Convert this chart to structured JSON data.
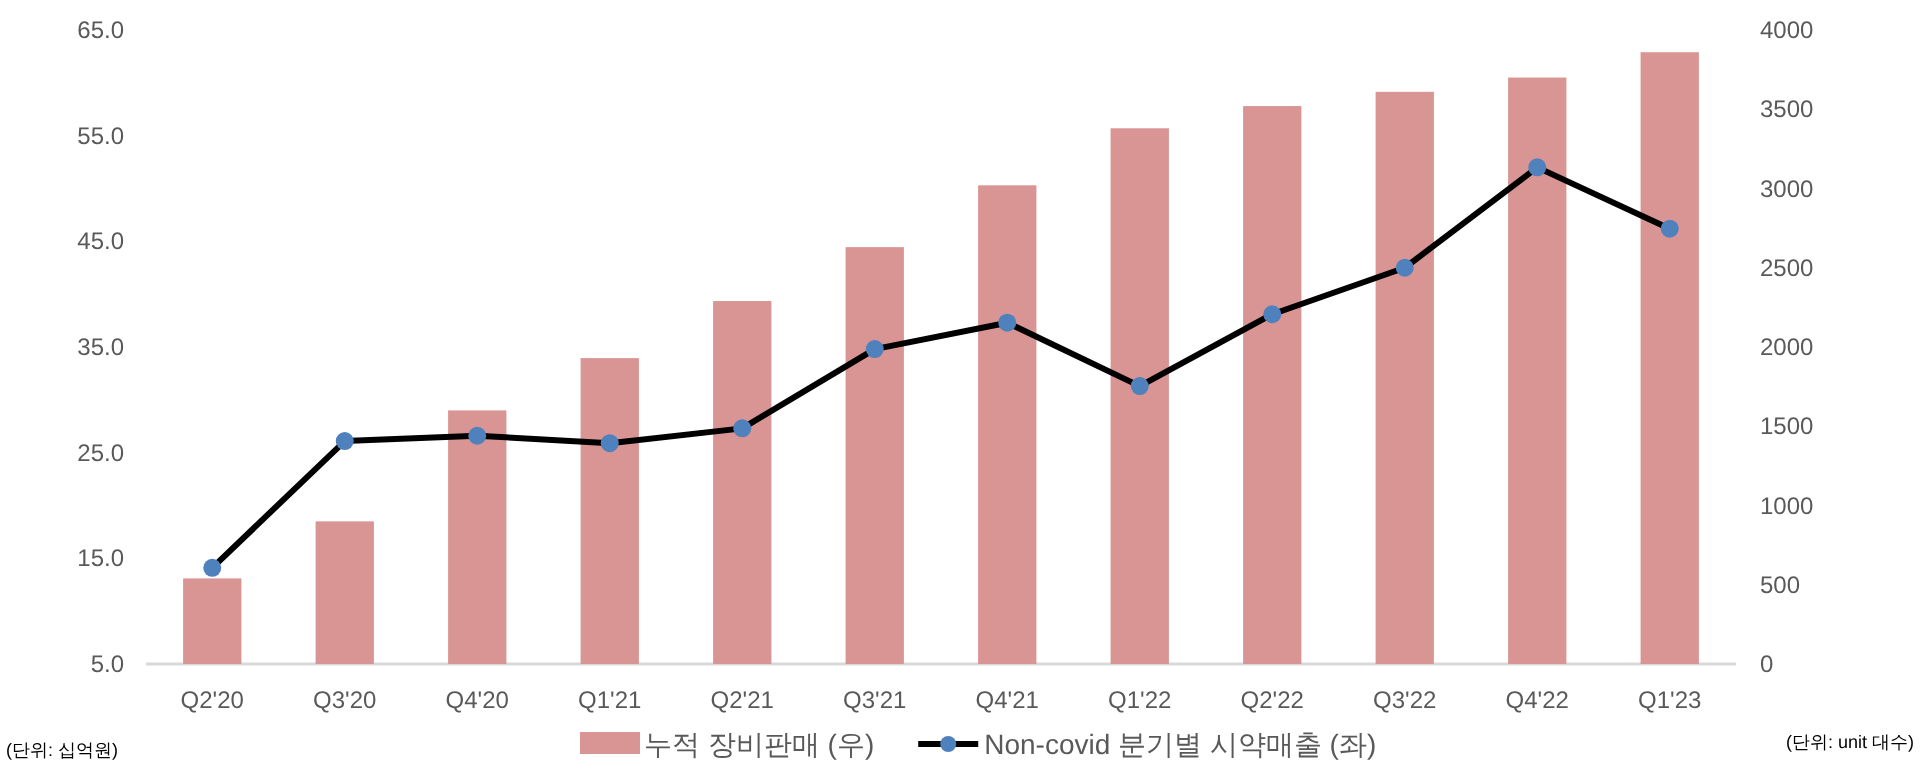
{
  "chart_data": {
    "type": "bar",
    "categories": [
      "Q2'20",
      "Q3'20",
      "Q4'20",
      "Q1'21",
      "Q2'21",
      "Q3'21",
      "Q4'21",
      "Q1'22",
      "Q2'22",
      "Q3'22",
      "Q4'22",
      "Q1'23"
    ],
    "series": [
      {
        "name": "누적 장비판매 (우)",
        "axis": "y2",
        "color": "#d99594",
        "values": [
          540,
          900,
          1600,
          1930,
          2290,
          2630,
          3020,
          3380,
          3520,
          3610,
          3700,
          3860
        ]
      },
      {
        "name": "Non-covid 분기별 시약매출 (좌)",
        "type": "line",
        "axis": "y",
        "color": "#000000",
        "marker": "circle",
        "values": [
          14.1,
          26.1,
          26.6,
          25.9,
          27.3,
          34.8,
          37.3,
          31.3,
          38.1,
          42.5,
          52.0,
          46.2
        ]
      }
    ],
    "ylim": [
      5,
      65
    ],
    "yticks": [
      {
        "value": 5,
        "label": "5.0"
      },
      {
        "value": 15,
        "label": "15.0"
      },
      {
        "value": 25,
        "label": "25.0"
      },
      {
        "value": 35,
        "label": "35.0"
      },
      {
        "value": 45,
        "label": "45.0"
      },
      {
        "value": 55,
        "label": "55.0"
      },
      {
        "value": 65,
        "label": "65.0"
      }
    ],
    "y2lim": [
      0,
      4000
    ],
    "y2ticks": [
      0,
      500,
      1000,
      1500,
      2000,
      2500,
      3000,
      3500,
      4000
    ],
    "legend": "bottom",
    "grid": false,
    "annotations": [
      "(단위: 십억원)",
      "(단위: unit 대수)"
    ]
  }
}
